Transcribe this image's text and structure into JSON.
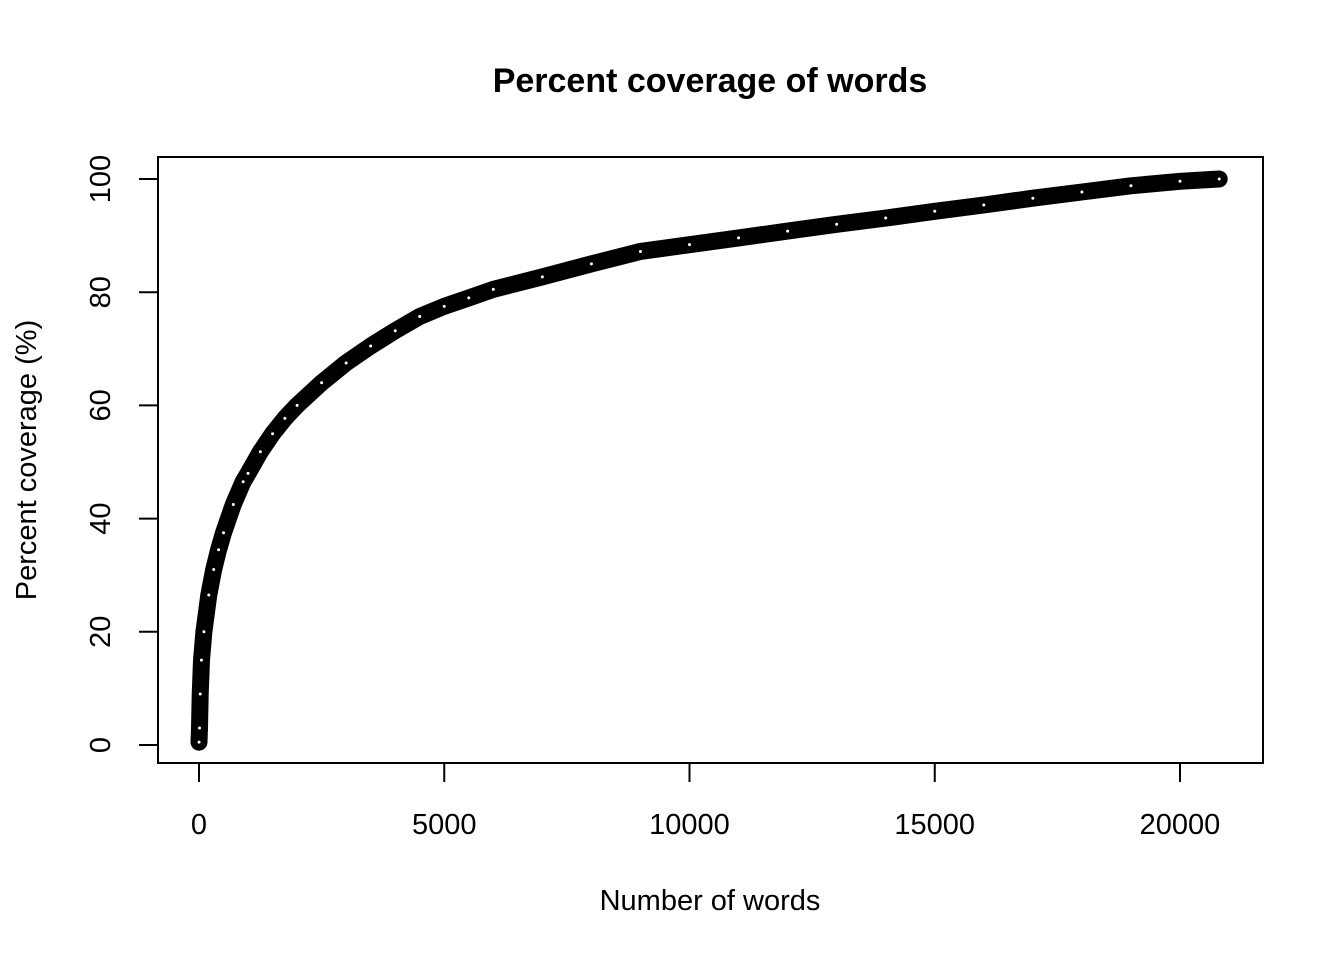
{
  "chart_data": {
    "type": "scatter",
    "title": "Percent coverage of words",
    "xlabel": "Number of words",
    "ylabel": "Percent coverage (%)",
    "xlim": [
      0,
      20800
    ],
    "ylim": [
      0,
      100
    ],
    "x_ticks": [
      0,
      5000,
      10000,
      15000,
      20000
    ],
    "x_tick_labels": [
      "0",
      "5000",
      "10000",
      "15000",
      "20000"
    ],
    "y_ticks": [
      0,
      20,
      40,
      60,
      80,
      100
    ],
    "y_tick_labels": [
      "0",
      "20",
      "40",
      "60",
      "80",
      "100"
    ],
    "grid": false,
    "legend": "none",
    "point_color": "#000000",
    "series": [
      {
        "x": [
          1,
          10,
          25,
          50,
          100,
          200,
          300,
          400,
          500,
          700,
          900,
          1000,
          1250,
          1500,
          1750,
          2000,
          2500,
          3000,
          3500,
          4000,
          4500,
          5000,
          5500,
          6000,
          7000,
          8000,
          9000,
          10000,
          11000,
          12000,
          13000,
          14000,
          15000,
          16000,
          17000,
          18000,
          19000,
          20000,
          20800
        ],
        "y": [
          0.5,
          3.0,
          9.0,
          15.0,
          20.0,
          26.5,
          31.0,
          34.5,
          37.5,
          42.5,
          46.5,
          48.0,
          51.8,
          55.0,
          57.7,
          60.0,
          64.0,
          67.5,
          70.5,
          73.2,
          75.7,
          77.5,
          79.0,
          80.5,
          82.7,
          85.0,
          87.2,
          88.4,
          89.6,
          90.8,
          92.0,
          93.1,
          94.3,
          95.4,
          96.6,
          97.7,
          98.8,
          99.6,
          100
        ]
      }
    ]
  }
}
